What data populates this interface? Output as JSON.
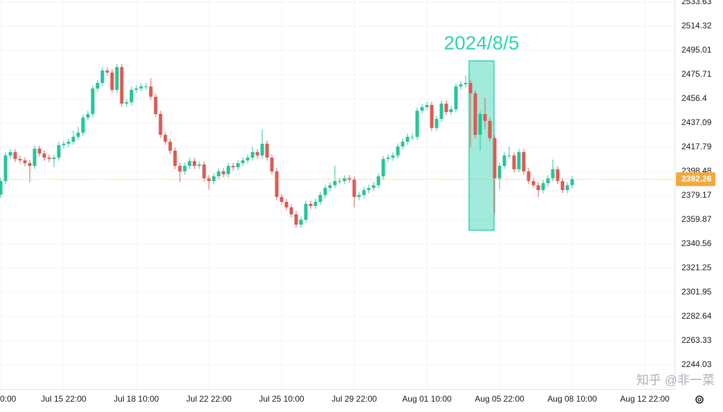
{
  "chart_data": {
    "type": "candlestick",
    "categories": [
      "0:00",
      null,
      null,
      null,
      null,
      null,
      null,
      null,
      null,
      null,
      null,
      null,
      null,
      "Jul 15 22:00",
      null,
      null,
      null,
      null,
      null,
      null,
      null,
      null,
      null,
      null,
      null,
      null,
      null,
      null,
      "Jul 18 10:00",
      null,
      null,
      null,
      null,
      null,
      null,
      null,
      null,
      null,
      null,
      null,
      null,
      null,
      null,
      "Jul 22 22:00",
      null,
      null,
      null,
      null,
      null,
      null,
      null,
      null,
      null,
      null,
      null,
      null,
      null,
      null,
      "Jul 25 10:00",
      null,
      null,
      null,
      null,
      null,
      null,
      null,
      null,
      null,
      null,
      null,
      null,
      null,
      null,
      "Jul 29 22:00",
      null,
      null,
      null,
      null,
      null,
      null,
      null,
      null,
      null,
      null,
      null,
      null,
      null,
      null,
      "Aug 01 10:00",
      null,
      null,
      null,
      null,
      null,
      null,
      null,
      null,
      null,
      null,
      null,
      null,
      null,
      null,
      "Aug 05 22:00",
      null,
      null,
      null,
      null,
      null,
      null,
      null,
      null,
      null,
      null,
      null,
      null,
      null,
      null,
      "Aug 08 10:00",
      null,
      null,
      null,
      null,
      null,
      null,
      null,
      null,
      null,
      null,
      null,
      null,
      null,
      null,
      "Aug 12 22:00"
    ],
    "open": [
      2380.0,
      2390.8,
      2411.2,
      2413.9,
      2408.4,
      2407.3,
      2405.1,
      2402.9,
      2416.7,
      2412.8,
      2409.5,
      2408.4,
      2409.5,
      2419.5,
      2420.6,
      2422.2,
      2426.1,
      2429.4,
      2441.5,
      2444.3,
      2464.7,
      2469.1,
      2479.0,
      2477.4,
      2463.6,
      2481.8,
      2452.6,
      2453.7,
      2463.6,
      2464.7,
      2466.3,
      2466.3,
      2458.1,
      2444.3,
      2427.7,
      2422.2,
      2415.0,
      2402.9,
      2398.5,
      2402.9,
      2406.8,
      2402.9,
      2404.0,
      2393.0,
      2390.8,
      2394.6,
      2398.5,
      2396.3,
      2402.9,
      2401.8,
      2405.1,
      2407.3,
      2409.5,
      2413.9,
      2411.2,
      2420.6,
      2409.5,
      2398.5,
      2378.1,
      2374.2,
      2369.8,
      2364.3,
      2356.0,
      2359.9,
      2372.6,
      2370.9,
      2374.2,
      2379.7,
      2385.3,
      2387.5,
      2390.8,
      2390.8,
      2393.0,
      2391.9,
      2378.1,
      2379.7,
      2383.6,
      2385.3,
      2387.5,
      2394.6,
      2408.4,
      2409.5,
      2411.2,
      2418.4,
      2422.2,
      2426.1,
      2426.1,
      2447.0,
      2449.8,
      2451.5,
      2433.2,
      2440.4,
      2452.6,
      2445.9,
      2448.1,
      2466.3,
      2468.0,
      2469.1,
      2460.8,
      2427.7,
      2444.3,
      2438.8,
      2425.0,
      2393.0,
      2402.9,
      2411.2,
      2411.2,
      2400.2,
      2413.9,
      2398.5,
      2390.8,
      2387.5,
      2383.6,
      2389.1,
      2393.0,
      2400.2,
      2390.8,
      2383.6,
      2387.5,
      null,
      null,
      null,
      null,
      null,
      null,
      null,
      null,
      null,
      null,
      null,
      null,
      null,
      null,
      null
    ],
    "high": [
      2393.3,
      2413.7,
      2416.4,
      2416.4,
      2410.9,
      2409.8,
      2407.6,
      2419.2,
      2419.2,
      2415.3,
      2412.0,
      2412.0,
      2422.0,
      2423.1,
      2424.7,
      2431.0,
      2434.0,
      2444.0,
      2446.8,
      2467.2,
      2471.6,
      2481.5,
      2481.5,
      2479.9,
      2484.3,
      2484.3,
      2456.2,
      2466.1,
      2467.2,
      2468.8,
      2468.8,
      2473.0,
      2460.6,
      2446.8,
      2430.2,
      2424.7,
      2417.5,
      2405.4,
      2405.4,
      2409.3,
      2409.3,
      2406.5,
      2406.5,
      2395.5,
      2397.1,
      2401.0,
      2401.0,
      2405.4,
      2405.4,
      2407.6,
      2409.8,
      2412.0,
      2418.0,
      2416.4,
      2432.0,
      2423.1,
      2412.0,
      2401.0,
      2380.6,
      2376.7,
      2372.3,
      2366.8,
      2362.4,
      2375.1,
      2375.1,
      2376.7,
      2382.2,
      2387.8,
      2390.0,
      2403.0,
      2393.3,
      2395.5,
      2395.5,
      2394.4,
      2382.2,
      2386.1,
      2387.8,
      2390.0,
      2397.1,
      2410.9,
      2412.0,
      2413.7,
      2420.9,
      2424.7,
      2428.6,
      2428.6,
      2449.5,
      2452.3,
      2454.0,
      2454.0,
      2442.9,
      2455.1,
      2455.1,
      2450.6,
      2468.8,
      2470.5,
      2475.0,
      2471.6,
      2463.3,
      2446.8,
      2457.0,
      2441.3,
      2427.5,
      2405.4,
      2413.7,
      2418.0,
      2413.7,
      2416.4,
      2416.4,
      2401.0,
      2393.3,
      2390.0,
      2391.6,
      2395.5,
      2408.0,
      2402.7,
      2393.3,
      2390.0,
      2394.8,
      null,
      null,
      null,
      null,
      null,
      null,
      null,
      null,
      null,
      null,
      null,
      null,
      null,
      null,
      null
    ],
    "low": [
      2377.5,
      2388.3,
      2408.7,
      2405.9,
      2404.8,
      2402.6,
      2390.0,
      2400.4,
      2410.3,
      2407.0,
      2405.9,
      2402.0,
      2407.0,
      2417.0,
      2418.1,
      2419.7,
      2423.6,
      2426.9,
      2439.0,
      2441.8,
      2462.2,
      2466.6,
      2474.9,
      2461.1,
      2461.1,
      2450.1,
      2450.1,
      2451.2,
      2461.1,
      2462.2,
      2463.8,
      2455.6,
      2441.8,
      2425.2,
      2419.7,
      2412.5,
      2400.4,
      2390.0,
      2396.0,
      2400.4,
      2400.4,
      2400.4,
      2390.5,
      2384.0,
      2388.3,
      2392.1,
      2393.8,
      2393.8,
      2399.3,
      2399.3,
      2402.6,
      2404.8,
      2407.0,
      2408.7,
      2408.7,
      2407.0,
      2396.0,
      2375.6,
      2371.7,
      2367.3,
      2361.8,
      2353.5,
      2353.5,
      2357.4,
      2368.4,
      2368.4,
      2371.7,
      2377.2,
      2382.8,
      2385.0,
      2388.3,
      2388.3,
      2389.4,
      2370.0,
      2375.6,
      2377.2,
      2381.1,
      2382.8,
      2385.0,
      2392.1,
      2405.9,
      2407.0,
      2408.7,
      2415.9,
      2419.7,
      2423.6,
      2423.6,
      2444.5,
      2447.3,
      2430.7,
      2430.7,
      2437.9,
      2443.4,
      2443.4,
      2445.6,
      2463.8,
      2465.5,
      2418.0,
      2425.2,
      2415.0,
      2432.0,
      2422.5,
      2365.0,
      2384.0,
      2400.4,
      2408.7,
      2397.7,
      2397.7,
      2396.0,
      2388.3,
      2385.0,
      2378.0,
      2381.1,
      2386.6,
      2390.5,
      2388.3,
      2381.1,
      2381.1,
      2385.0,
      null,
      null,
      null,
      null,
      null,
      null,
      null,
      null,
      null,
      null,
      null,
      null,
      null,
      null,
      null
    ],
    "close": [
      2390.8,
      2411.2,
      2413.9,
      2408.4,
      2407.3,
      2405.1,
      2402.9,
      2416.7,
      2412.8,
      2409.5,
      2408.4,
      2409.5,
      2419.5,
      2420.6,
      2422.2,
      2426.1,
      2429.4,
      2441.5,
      2444.3,
      2464.7,
      2469.1,
      2479.0,
      2477.4,
      2463.6,
      2481.8,
      2452.6,
      2453.7,
      2463.6,
      2464.7,
      2466.3,
      2466.3,
      2458.1,
      2444.3,
      2427.7,
      2422.2,
      2415.0,
      2402.9,
      2398.5,
      2402.9,
      2406.8,
      2402.9,
      2404.0,
      2393.0,
      2390.8,
      2394.6,
      2398.5,
      2396.3,
      2402.9,
      2401.8,
      2405.1,
      2407.3,
      2409.5,
      2413.9,
      2411.2,
      2420.6,
      2409.5,
      2398.5,
      2378.1,
      2374.2,
      2369.8,
      2364.3,
      2356.0,
      2359.9,
      2372.6,
      2370.9,
      2374.2,
      2379.7,
      2385.3,
      2387.5,
      2390.8,
      2390.8,
      2393.0,
      2391.9,
      2378.1,
      2379.7,
      2383.6,
      2385.3,
      2387.5,
      2394.6,
      2408.4,
      2409.5,
      2411.2,
      2418.4,
      2422.2,
      2426.1,
      2426.1,
      2447.0,
      2449.8,
      2451.5,
      2433.2,
      2440.4,
      2452.6,
      2445.9,
      2448.1,
      2466.3,
      2468.0,
      2469.1,
      2460.8,
      2427.7,
      2444.3,
      2438.8,
      2425.0,
      2393.0,
      2402.9,
      2411.2,
      2411.2,
      2400.2,
      2413.9,
      2398.5,
      2390.8,
      2387.5,
      2383.6,
      2389.1,
      2393.0,
      2400.2,
      2390.8,
      2383.6,
      2387.5,
      2392.26,
      null,
      null,
      null,
      null,
      null,
      null,
      null,
      null,
      null,
      null,
      null,
      null,
      null,
      null,
      null
    ],
    "up_color": "#26c49a",
    "down_color": "#dc5a54",
    "ylim": [
      2224.7,
      2535.3
    ],
    "yticks": [
      2533.63,
      2514.32,
      2495.01,
      2475.71,
      2456.4,
      2437.09,
      2417.79,
      2398.48,
      2379.17,
      2359.87,
      2340.56,
      2321.25,
      2301.95,
      2282.64,
      2263.33,
      2244.03
    ],
    "grid": true,
    "last_price": 2392.26,
    "last_price_color": "#f2a93b",
    "highlight": {
      "text": "2024/8/5",
      "ylim": [
        2351.6,
        2486.7
      ],
      "from": 97,
      "to": 102,
      "color": "#2ed3b0"
    },
    "watermark": "知乎 @非一菜"
  }
}
